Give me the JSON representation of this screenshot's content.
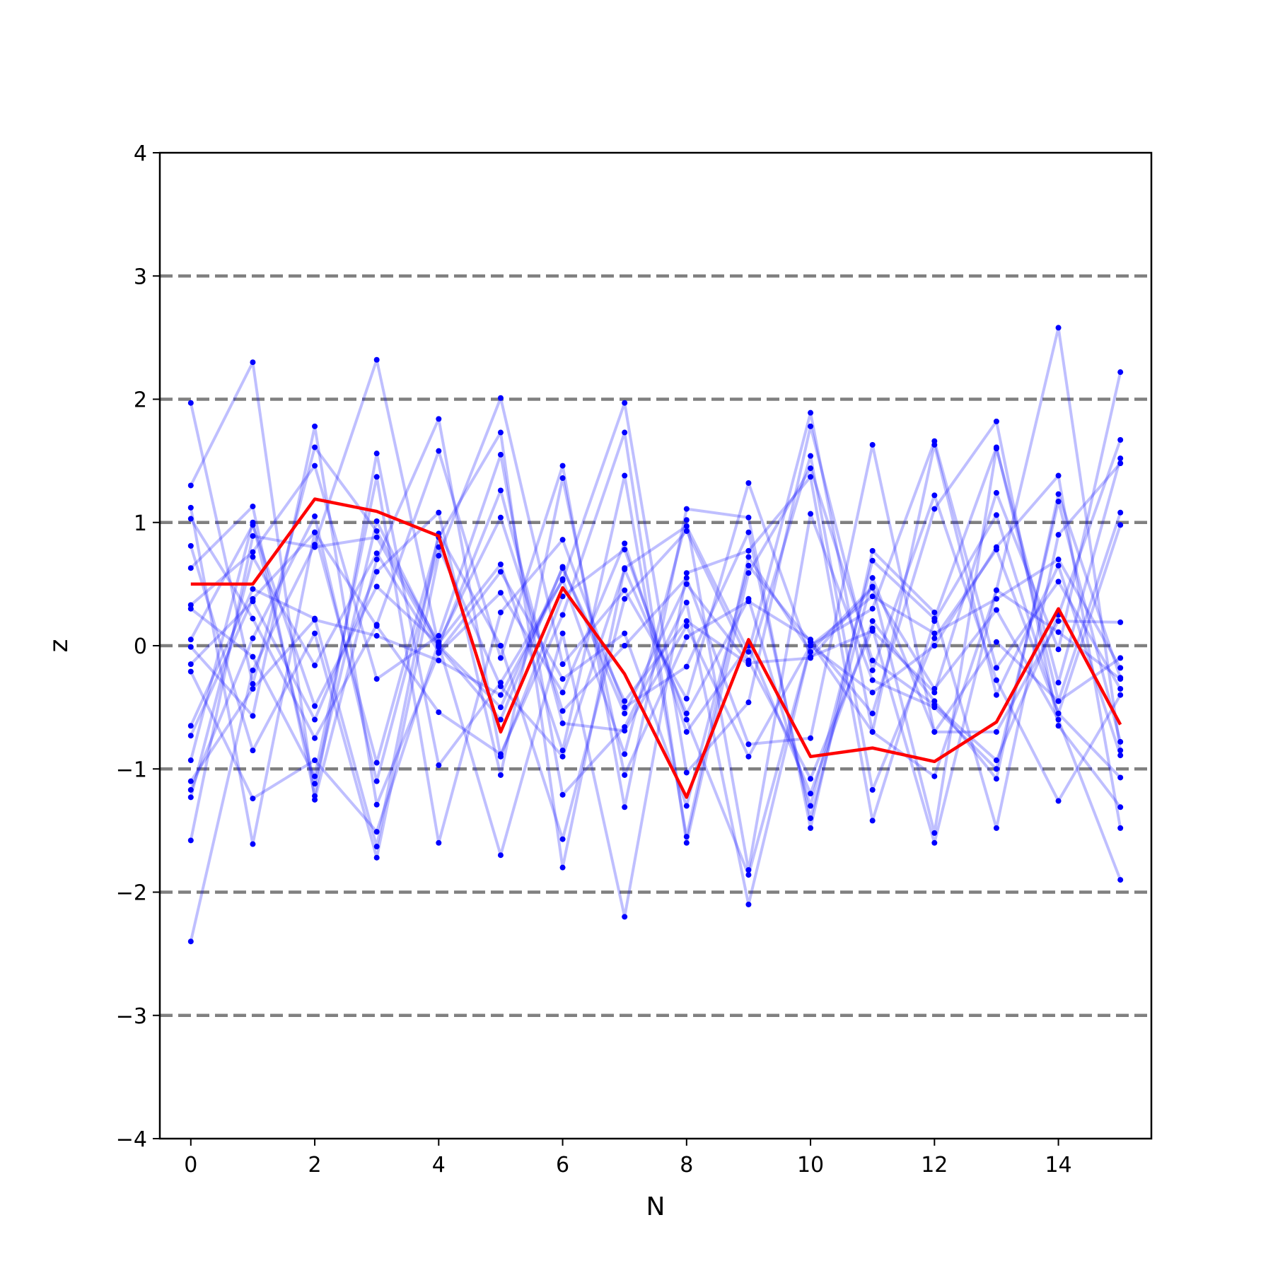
{
  "chart_data": {
    "type": "line",
    "title": "",
    "xlabel": "N",
    "ylabel": "z",
    "xlim": [
      -0.5,
      15.5
    ],
    "ylim": [
      -4,
      4
    ],
    "xticks": [
      0,
      2,
      4,
      6,
      8,
      10,
      12,
      14
    ],
    "yticks": [
      -4,
      -3,
      -2,
      -1,
      0,
      1,
      2,
      3,
      4
    ],
    "yticklabels": [
      "−4",
      "−3",
      "−2",
      "−1",
      "0",
      "1",
      "2",
      "3",
      "4"
    ],
    "grid": false,
    "hlines": [
      -3,
      -2,
      -1,
      0,
      1,
      2,
      3
    ],
    "hline_style": "dashed",
    "colors": {
      "background_series": "#0000ff",
      "highlight": "#ff0000",
      "reference_lines": "#808080"
    },
    "x": [
      0,
      1,
      2,
      3,
      4,
      5,
      6,
      7,
      8,
      9,
      10,
      11,
      12,
      13,
      14,
      15
    ],
    "highlight": {
      "values": [
        0.5,
        0.5,
        1.19,
        1.09,
        0.89,
        -0.7,
        0.47,
        -0.23,
        -1.23,
        0.05,
        -0.9,
        -0.83,
        -0.94,
        -0.62,
        0.3,
        -0.64
      ]
    },
    "series": [
      {
        "values": [
          1.97,
          -0.31,
          1.61,
          0.93,
          0.02,
          0.66,
          -0.85,
          1.38,
          -1.55,
          0.72,
          -0.05,
          0.48,
          -1.52,
          1.6,
          -0.3,
          1.52
        ]
      },
      {
        "values": [
          -2.4,
          -0.2,
          0.82,
          2.32,
          0.0,
          -0.5,
          0.63,
          -0.45,
          0.2,
          -0.15,
          1.54,
          -1.17,
          0.06,
          0.78,
          -0.55,
          0.98
        ]
      },
      {
        "values": [
          1.3,
          2.3,
          -1.25,
          0.7,
          1.84,
          -0.9,
          0.4,
          0.78,
          -0.6,
          -1.86,
          0.0,
          0.3,
          1.66,
          -0.18,
          0.52,
          -0.35
        ]
      },
      {
        "values": [
          1.12,
          -1.61,
          0.92,
          -0.95,
          0.88,
          1.73,
          -1.8,
          0.63,
          0.97,
          -0.05,
          1.89,
          -0.7,
          -1.06,
          0.45,
          2.58,
          -0.85
        ]
      },
      {
        "values": [
          1.03,
          0.22,
          -0.75,
          0.17,
          1.58,
          -0.1,
          1.46,
          -1.31,
          1.11,
          1.04,
          -1.48,
          0.77,
          0.27,
          -1.48,
          0.9,
          1.48
        ]
      },
      {
        "values": [
          0.81,
          -0.85,
          0.1,
          -1.72,
          0.73,
          2.01,
          -0.15,
          0.45,
          -0.43,
          1.32,
          -0.09,
          0.12,
          -0.38,
          1.24,
          -0.03,
          2.22
        ]
      },
      {
        "values": [
          0.63,
          1.13,
          -1.22,
          1.56,
          -0.97,
          -0.3,
          0.53,
          1.97,
          -1.03,
          -0.46,
          1.78,
          -0.2,
          1.22,
          -0.28,
          -1.26,
          -0.4
        ]
      },
      {
        "values": [
          0.33,
          0.76,
          1.46,
          -0.27,
          0.08,
          1.55,
          -1.21,
          -0.66,
          0.35,
          -2.1,
          0.0,
          -0.38,
          0.0,
          0.8,
          1.38,
          -1.48
        ]
      },
      {
        "values": [
          0.3,
          -0.09,
          -1.06,
          1.37,
          -1.6,
          0.27,
          0.86,
          -0.5,
          -0.17,
          0.92,
          -1.4,
          0.55,
          -0.7,
          -0.7,
          0.2,
          0.19
        ]
      },
      {
        "values": [
          0.05,
          0.98,
          -0.49,
          0.48,
          0.01,
          -1.7,
          0.1,
          -2.2,
          0.59,
          0.77,
          1.37,
          -1.42,
          0.2,
          1.06,
          -0.55,
          -1.07
        ]
      },
      {
        "values": [
          -0.01,
          -0.57,
          1.78,
          -1.29,
          -0.06,
          0.43,
          -0.38,
          0.83,
          -0.7,
          0.0,
          -1.2,
          0.2,
          -0.45,
          -1.08,
          1.23,
          -0.26
        ]
      },
      {
        "values": [
          -0.15,
          0.36,
          -0.6,
          0.6,
          1.08,
          -1.05,
          1.36,
          -1.05,
          0.07,
          0.36,
          0.05,
          -0.55,
          1.11,
          1.82,
          -0.65,
          -1.31
        ]
      },
      {
        "values": [
          -0.21,
          -1.24,
          -0.93,
          -1.51,
          0.03,
          1.04,
          -0.53,
          0.0,
          0.55,
          -0.8,
          -0.75,
          1.63,
          -0.7,
          0.03,
          -0.45,
          -0.1
        ]
      },
      {
        "values": [
          -0.65,
          0.46,
          0.22,
          -1.63,
          0.91,
          0.0,
          -1.57,
          0.38,
          0.93,
          -0.12,
          -1.08,
          0.14,
          -1.6,
          0.45,
          0.11,
          -0.27
        ]
      },
      {
        "values": [
          -0.73,
          0.38,
          0.92,
          0.16,
          -0.54,
          -0.88,
          0.25,
          1.73,
          -1.6,
          0.59,
          1.44,
          -0.12,
          -0.48,
          -0.93,
          0.25,
          1.67
        ]
      },
      {
        "values": [
          -0.93,
          1.0,
          -1.12,
          1.01,
          0.0,
          1.26,
          -0.63,
          -0.69,
          0.16,
          -0.9,
          0.0,
          0.4,
          0.1,
          0.38,
          0.7,
          -0.18
        ]
      },
      {
        "values": [
          -1.1,
          -0.35,
          0.21,
          0.08,
          -0.12,
          -0.4,
          0.54,
          -0.88,
          1.02,
          -1.82,
          1.07,
          -0.28,
          -0.5,
          -1.0,
          1.17,
          -0.78
        ]
      },
      {
        "values": [
          -1.17,
          0.06,
          1.05,
          -1.1,
          0.8,
          -0.33,
          -0.9,
          0.62,
          -0.55,
          0.38,
          -1.3,
          0.69,
          0.22,
          1.61,
          -0.45,
          1.08
        ]
      },
      {
        "values": [
          -1.23,
          0.72,
          -0.16,
          0.75,
          -0.05,
          0.6,
          -0.27,
          0.1,
          -1.3,
          0.65,
          0.03,
          -0.7,
          1.63,
          -0.4,
          0.65,
          -0.89
        ]
      },
      {
        "values": [
          -1.58,
          0.89,
          0.8,
          0.88,
          -0.01,
          -0.6,
          0.64,
          -0.55,
          0.5,
          -0.14,
          -0.1,
          0.47,
          -0.35,
          0.29,
          -0.6,
          -1.9
        ]
      }
    ]
  }
}
